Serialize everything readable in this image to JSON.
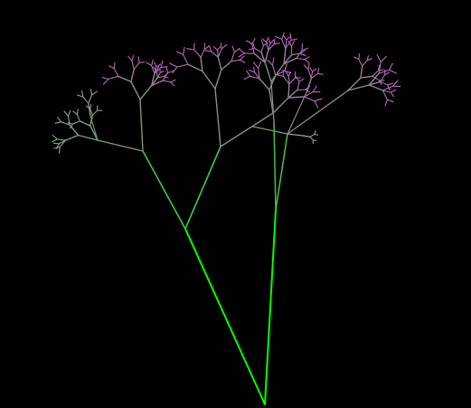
{
  "scene": {
    "background_color": "#000000",
    "subject": "fractal-tree",
    "trunk_color": "#00ff00",
    "mid_branch_color": "#7a9a7a",
    "twig_color_pink": "#c060c0",
    "twig_color_grey": "#90a890"
  }
}
